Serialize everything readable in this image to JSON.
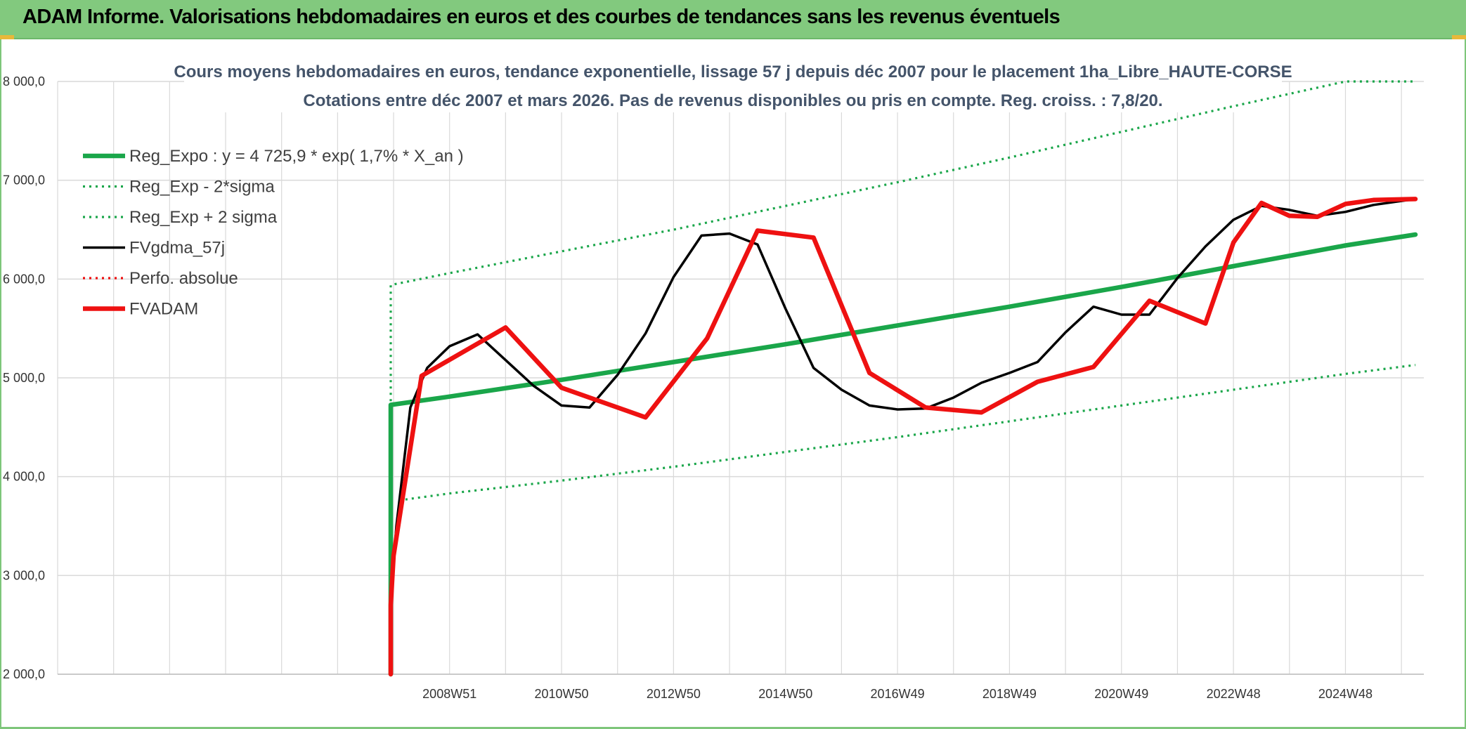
{
  "banner": {
    "title": "ADAM Informe. Valorisations hebdomadaires en euros et des courbes de tendances sans les revenus éventuels"
  },
  "colors": {
    "banner_bg": "#82c97e",
    "reg_expo": "#1aa64a",
    "fvgdma": "#000000",
    "fvadam": "#ee1111",
    "perfo": "#ee1111",
    "grid": "#d9d9d9"
  },
  "chart_data": {
    "type": "line",
    "title": "Cours moyens hebdomadaires en euros, tendance exponentielle, lissage 57 j depuis déc 2007 pour le placement 1ha_Libre_HAUTE-CORSE",
    "subtitle": "Cotations entre déc 2007 et mars 2026. Pas de revenus disponibles ou pris en compte. Reg. croiss. : 7,8/20.",
    "xlabel": "",
    "ylabel": "",
    "ylim": [
      2000,
      8000
    ],
    "xlim": [
      2002.0,
      2026.4
    ],
    "y_ticks": [
      2000,
      3000,
      4000,
      5000,
      6000,
      7000,
      8000
    ],
    "y_tick_labels": [
      "2 000,0",
      "3 000,0",
      "4 000,0",
      "5 000,0",
      "6 000,0",
      "7 000,0",
      "8 000,0"
    ],
    "x_ticks": [
      2009.0,
      2011.0,
      2013.0,
      2015.0,
      2017.0,
      2019.0,
      2021.0,
      2023.0,
      2025.0
    ],
    "x_tick_labels": [
      "2008W51",
      "2010W50",
      "2012W50",
      "2014W50",
      "2016W49",
      "2018W49",
      "2020W49",
      "2022W48",
      "2024W48"
    ],
    "grid": true,
    "legend_position": "top-left",
    "series": [
      {
        "name": "Reg_Expo : y = 4 725,9 * exp( 1,7% *  X_an )",
        "style": "solid-thick",
        "color": "#1aa64a",
        "x": [
          2007.95,
          2007.95,
          2009.0,
          2011.0,
          2013.0,
          2015.0,
          2017.0,
          2019.0,
          2021.0,
          2023.0,
          2025.0,
          2026.25
        ],
        "y": [
          2000,
          4726,
          4810,
          4980,
          5160,
          5340,
          5530,
          5720,
          5920,
          6130,
          6340,
          6450
        ]
      },
      {
        "name": "Reg_Exp - 2*sigma",
        "style": "dotted",
        "color": "#1aa64a",
        "x": [
          2008.1,
          2009.0,
          2011.0,
          2013.0,
          2015.0,
          2017.0,
          2019.0,
          2021.0,
          2023.0,
          2025.0,
          2026.25
        ],
        "y": [
          3760,
          3830,
          3960,
          4100,
          4250,
          4400,
          4560,
          4720,
          4880,
          5040,
          5130
        ]
      },
      {
        "name": "Reg_Exp + 2 sigma",
        "style": "dotted",
        "color": "#1aa64a",
        "x": [
          2007.95,
          2007.95,
          2009.0,
          2011.0,
          2013.0,
          2015.0,
          2017.0,
          2019.0,
          2021.0,
          2023.0,
          2025.0,
          2026.25
        ],
        "y": [
          4700,
          5940,
          6060,
          6280,
          6500,
          6740,
          6980,
          7230,
          7490,
          7750,
          8000,
          8000
        ]
      },
      {
        "name": "FVgdma_57j",
        "style": "solid",
        "color": "#000000",
        "x": [
          2007.95,
          2008.05,
          2008.3,
          2008.6,
          2009.0,
          2009.5,
          2010.0,
          2010.5,
          2011.0,
          2011.5,
          2012.0,
          2012.5,
          2013.0,
          2013.5,
          2014.0,
          2014.5,
          2015.0,
          2015.5,
          2016.0,
          2016.5,
          2017.0,
          2017.5,
          2018.0,
          2018.5,
          2019.0,
          2019.5,
          2020.0,
          2020.5,
          2021.0,
          2021.5,
          2022.0,
          2022.5,
          2023.0,
          2023.5,
          2024.0,
          2024.5,
          2025.0,
          2025.5,
          2026.0,
          2026.25
        ],
        "y": [
          2700,
          3500,
          4700,
          5100,
          5320,
          5440,
          5180,
          4920,
          4720,
          4700,
          5030,
          5450,
          6020,
          6440,
          6460,
          6350,
          5700,
          5100,
          4880,
          4720,
          4680,
          4690,
          4800,
          4950,
          5050,
          5160,
          5460,
          5720,
          5640,
          5640,
          6010,
          6330,
          6600,
          6740,
          6700,
          6640,
          6680,
          6750,
          6790,
          6810
        ]
      },
      {
        "name": "Perfo. absolue",
        "style": "dotted",
        "color": "#ee1111",
        "x": [],
        "y": []
      },
      {
        "name": "FVADAM",
        "style": "solid-thick",
        "color": "#ee1111",
        "x": [
          2007.95,
          2007.95,
          2008.0,
          2008.5,
          2010.0,
          2011.0,
          2012.5,
          2013.6,
          2014.5,
          2015.5,
          2016.5,
          2017.5,
          2018.5,
          2019.5,
          2020.5,
          2021.5,
          2022.5,
          2023.0,
          2023.5,
          2024.0,
          2024.5,
          2025.0,
          2025.5,
          2026.25
        ],
        "y": [
          2000,
          2700,
          3200,
          5020,
          5510,
          4900,
          4600,
          5400,
          6490,
          6420,
          5050,
          4700,
          4650,
          4960,
          5110,
          5780,
          5550,
          6370,
          6770,
          6640,
          6630,
          6760,
          6800,
          6810
        ]
      }
    ]
  }
}
